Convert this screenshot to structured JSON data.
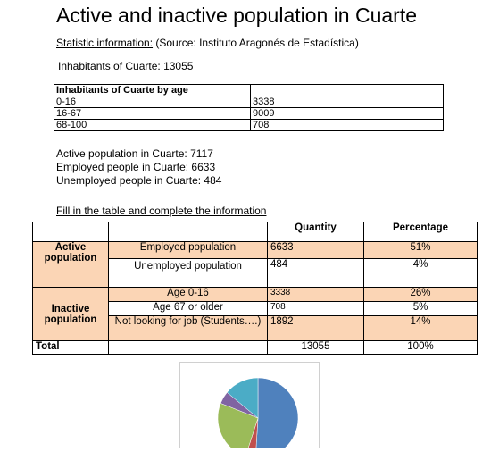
{
  "title": "Active and inactive population  in Cuarte",
  "source": {
    "label": "Statistic information:",
    "text": " (Source: Instituto Aragonés de Estadística)"
  },
  "inhabitants_line": "Inhabitants of Cuarte: 13055",
  "age_table": {
    "header": "Inhabitants of Cuarte by age",
    "rows": [
      {
        "range": "0-16",
        "value": "3338"
      },
      {
        "range": "16-67",
        "value": "9009"
      },
      {
        "range": "68-100",
        "value": "708"
      }
    ]
  },
  "stats": [
    "Active population in Cuarte:  7117",
    "Employed people in Cuarte: 6633",
    "Unemployed people in Cuarte: 484"
  ],
  "fill_heading": "Fill in the table and complete the information",
  "main_table": {
    "headers": {
      "quantity": "Quantity",
      "percentage": "Percentage"
    },
    "active_label": "Active population",
    "inactive_label": "Inactive population",
    "rows": [
      {
        "label": "Employed population",
        "quantity": "6633",
        "percentage": "51%"
      },
      {
        "label": "Unemployed population",
        "quantity": "484",
        "percentage": "4%"
      },
      {
        "label": "Age 0-16",
        "quantity": "3338",
        "percentage": "26%"
      },
      {
        "label": "Age 67 or older",
        "quantity": "708",
        "percentage": "5%"
      },
      {
        "label": "Not looking for job (Students….)",
        "quantity": "1892",
        "percentage": "14%"
      }
    ],
    "total": {
      "label": "Total",
      "quantity": "13055",
      "percentage": "100%"
    }
  },
  "chart_data": {
    "type": "pie",
    "values": [
      51,
      4,
      26,
      5,
      14
    ],
    "colors": [
      "#4f81bd",
      "#c0504d",
      "#9bbb59",
      "#8064a2",
      "#4bacc6"
    ]
  }
}
